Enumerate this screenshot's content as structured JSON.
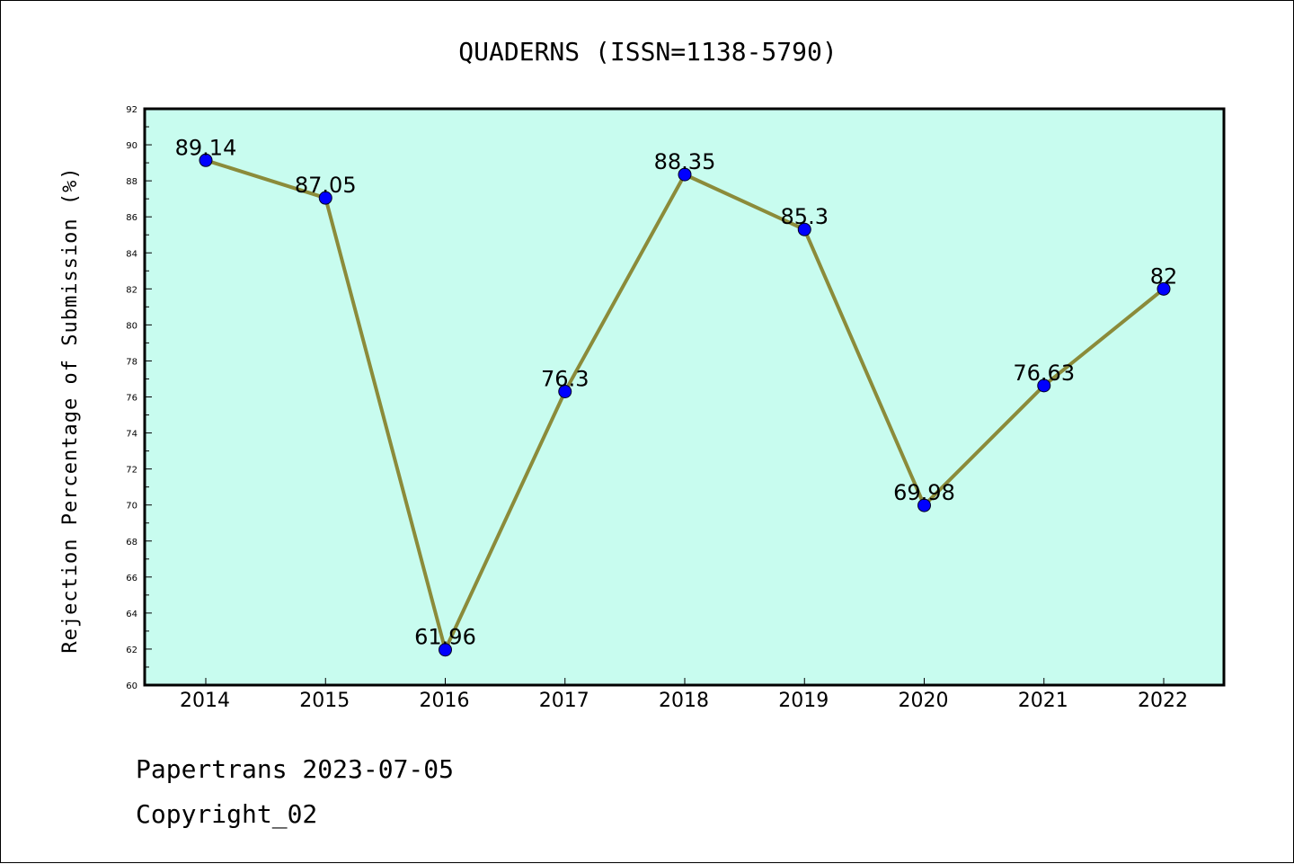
{
  "chart_data": {
    "type": "line",
    "title": "QUADERNS (ISSN=1138-5790)",
    "xlabel": "",
    "ylabel": "Rejection Percentage of Submission (%)",
    "categories": [
      "2014",
      "2015",
      "2016",
      "2017",
      "2018",
      "2019",
      "2020",
      "2021",
      "2022"
    ],
    "series": [
      {
        "values": [
          89.14,
          87.05,
          61.96,
          76.3,
          88.35,
          85.3,
          69.98,
          76.63,
          82
        ],
        "labels": [
          "89.14",
          "87.05",
          "61.96",
          "76.3",
          "88.35",
          "85.3",
          "69.98",
          "76.63",
          "82"
        ]
      }
    ],
    "ylim": [
      60,
      92
    ],
    "yticks": [
      "60",
      "62",
      "64",
      "66",
      "68",
      "70",
      "72",
      "74",
      "76",
      "78",
      "80",
      "82",
      "84",
      "86",
      "88",
      "90",
      "92"
    ],
    "grid": false,
    "colors": {
      "plot_background": "#c8fcef",
      "line": "#8b8b3a",
      "marker": "#0000ff"
    }
  },
  "footer": {
    "line1": "Papertrans 2023-07-05",
    "line2": "Copyright_02"
  }
}
